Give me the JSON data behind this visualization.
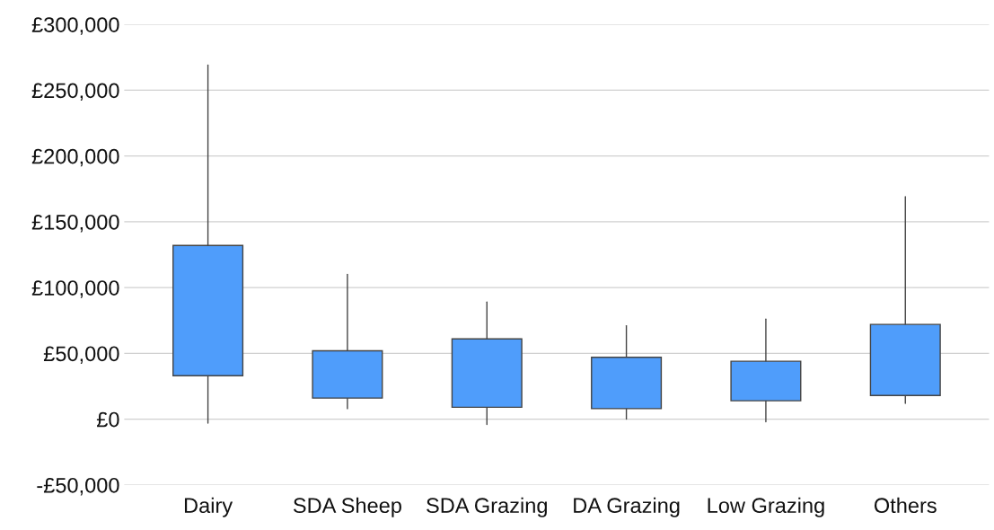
{
  "chart_data": {
    "type": "candlestick",
    "categories": [
      "Dairy",
      "SDA Sheep",
      "SDA Grazing",
      "DA Grazing",
      "Low Grazing",
      "Others"
    ],
    "ohlc": [
      [
        33000,
        269000,
        -3000,
        132000
      ],
      [
        16000,
        110000,
        8000,
        52000
      ],
      [
        9000,
        89000,
        -4000,
        61000
      ],
      [
        8000,
        71000,
        0,
        47000
      ],
      [
        14000,
        76000,
        -2000,
        44000
      ],
      [
        18000,
        169000,
        12000,
        72000
      ]
    ],
    "color": "#4f9dfb",
    "ylim": [
      -50000,
      300000
    ],
    "yticks": [
      {
        "value": -50000,
        "label": "-£50,000"
      },
      {
        "value": 0,
        "label": "£0"
      },
      {
        "value": 50000,
        "label": "£50,000"
      },
      {
        "value": 100000,
        "label": "£100,000"
      },
      {
        "value": 150000,
        "label": "£150,000"
      },
      {
        "value": 200000,
        "label": "£200,000"
      },
      {
        "value": 250000,
        "label": "£250,000"
      },
      {
        "value": 300000,
        "label": "£300,000"
      }
    ],
    "grid": "y"
  }
}
